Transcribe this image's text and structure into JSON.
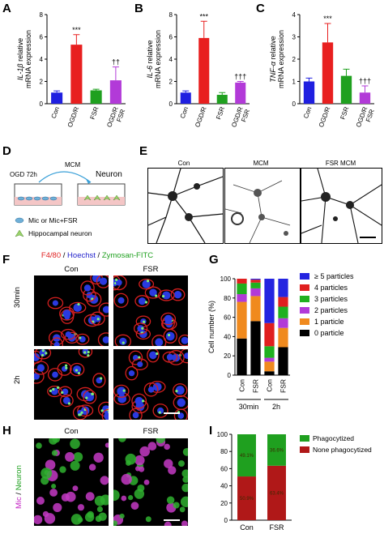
{
  "panels": {
    "A": "A",
    "B": "B",
    "C": "C",
    "D": "D",
    "E": "E",
    "F": "F",
    "G": "G",
    "H": "H",
    "I": "I"
  },
  "chart_data": [
    {
      "panel": "A",
      "type": "bar",
      "categories": [
        "Con",
        "OGD/R",
        "FSR",
        "OGD/R\nFSR"
      ],
      "values": [
        1.0,
        5.3,
        1.2,
        2.1
      ],
      "errors": [
        0.15,
        0.9,
        0.1,
        1.2
      ],
      "significance": [
        "",
        "***",
        "",
        "††"
      ],
      "colors": [
        "#1f1fe0",
        "#e81f1f",
        "#1fa01f",
        "#b23ad8"
      ],
      "ylabel_italic": "IL-1β",
      "ylabel_rest": " relative",
      "ylabel_line2": "mRNA expression",
      "ylim": [
        0,
        8
      ],
      "yticks": [
        "0",
        "2",
        "4",
        "6",
        "8"
      ]
    },
    {
      "panel": "B",
      "type": "bar",
      "categories": [
        "Con",
        "OGD/R",
        "FSR",
        "OGD/R\nFSR"
      ],
      "values": [
        1.0,
        5.9,
        0.8,
        1.9
      ],
      "errors": [
        0.15,
        1.5,
        0.2,
        0.1
      ],
      "significance": [
        "",
        "***",
        "",
        "†††"
      ],
      "colors": [
        "#1f1fe0",
        "#e81f1f",
        "#1fa01f",
        "#b23ad8"
      ],
      "ylabel_italic": "IL-6",
      "ylabel_rest": " relative",
      "ylabel_line2": "mRNA expression",
      "ylim": [
        0,
        8
      ],
      "yticks": [
        "0",
        "2",
        "4",
        "6",
        "8"
      ]
    },
    {
      "panel": "C",
      "type": "bar",
      "categories": [
        "Con",
        "OGD/R",
        "FSR",
        "OGD/R\nFSR"
      ],
      "values": [
        1.0,
        2.75,
        1.25,
        0.5
      ],
      "errors": [
        0.15,
        0.85,
        0.3,
        0.3
      ],
      "significance": [
        "",
        "***",
        "",
        "†††"
      ],
      "colors": [
        "#1f1fe0",
        "#e81f1f",
        "#1fa01f",
        "#b23ad8"
      ],
      "ylabel_italic": "TNF-α",
      "ylabel_rest": " relative",
      "ylabel_line2": "mRNA expression",
      "ylim": [
        0,
        4
      ],
      "yticks": [
        "0",
        "1",
        "2",
        "3",
        "4"
      ]
    },
    {
      "panel": "G",
      "type": "bar",
      "stacked": true,
      "categories": [
        "Con",
        "FSR",
        "Con",
        "FSR"
      ],
      "groups": [
        "30min",
        "2h"
      ],
      "ylabel": "Cell number (%)",
      "ylim": [
        0,
        100
      ],
      "yticks": [
        "0",
        "20",
        "40",
        "60",
        "80",
        "100"
      ],
      "series": [
        {
          "name": "0 particle",
          "color": "#000000",
          "values": [
            38,
            56,
            4,
            29
          ]
        },
        {
          "name": "1 particle",
          "color": "#f08a1e",
          "values": [
            38,
            26,
            10,
            20
          ]
        },
        {
          "name": "2 particles",
          "color": "#b23ad8",
          "values": [
            8,
            8,
            4,
            10
          ]
        },
        {
          "name": "3 particles",
          "color": "#1fb01f",
          "values": [
            11,
            6,
            12,
            12
          ]
        },
        {
          "name": "4 particles",
          "color": "#e01f1f",
          "values": [
            5,
            3,
            24,
            10
          ]
        },
        {
          "name": "≥ 5 particles",
          "color": "#2424e0",
          "values": [
            0,
            1,
            46,
            19
          ]
        }
      ],
      "legend_order": [
        "≥ 5 particles",
        "4 particles",
        "3 particles",
        "2 particles",
        "1 particle",
        "0 particle"
      ]
    },
    {
      "panel": "I",
      "type": "bar",
      "stacked": true,
      "categories": [
        "Con",
        "FSR"
      ],
      "ylim": [
        0,
        100
      ],
      "yticks": [
        "0",
        "20",
        "40",
        "60",
        "80",
        "100"
      ],
      "series": [
        {
          "name": "None phagocytized",
          "color": "#b01818",
          "values": [
            50.9,
            63.4
          ],
          "labels": [
            "50.9%",
            "63.4%"
          ]
        },
        {
          "name": "Phagocytized",
          "color": "#1fa01f",
          "values": [
            49.1,
            36.6
          ],
          "labels": [
            "49.1%",
            "36.6%"
          ]
        }
      ],
      "legend_order": [
        "Phagocytized",
        "None phagocytized"
      ]
    }
  ],
  "schematic_D": {
    "ogd": "OGD 72h",
    "mcm": "MCM",
    "neuron": "Neuron",
    "legend1": "Mic or Mic+FSR",
    "legend2": "Hippocampal neuron"
  },
  "panel_E": {
    "captions": [
      "Con",
      "MCM",
      "FSR MCM"
    ]
  },
  "panel_F": {
    "title_parts": [
      {
        "text": "F4/80",
        "color": "#e01f1f"
      },
      {
        "text": " / ",
        "color": "#000000"
      },
      {
        "text": "Hoechst",
        "color": "#2222cc"
      },
      {
        "text": " / ",
        "color": "#000000"
      },
      {
        "text": "Zymosan-FITC",
        "color": "#1fa01f"
      }
    ],
    "cols": [
      "Con",
      "FSR"
    ],
    "rows": [
      "30min",
      "2h"
    ]
  },
  "panel_H": {
    "cols": [
      "Con",
      "FSR"
    ],
    "side_parts": [
      {
        "text": "Mic",
        "color": "#c21fc2"
      },
      {
        "text": " / ",
        "color": "#000000"
      },
      {
        "text": "Neuron",
        "color": "#1fa01f"
      }
    ]
  }
}
